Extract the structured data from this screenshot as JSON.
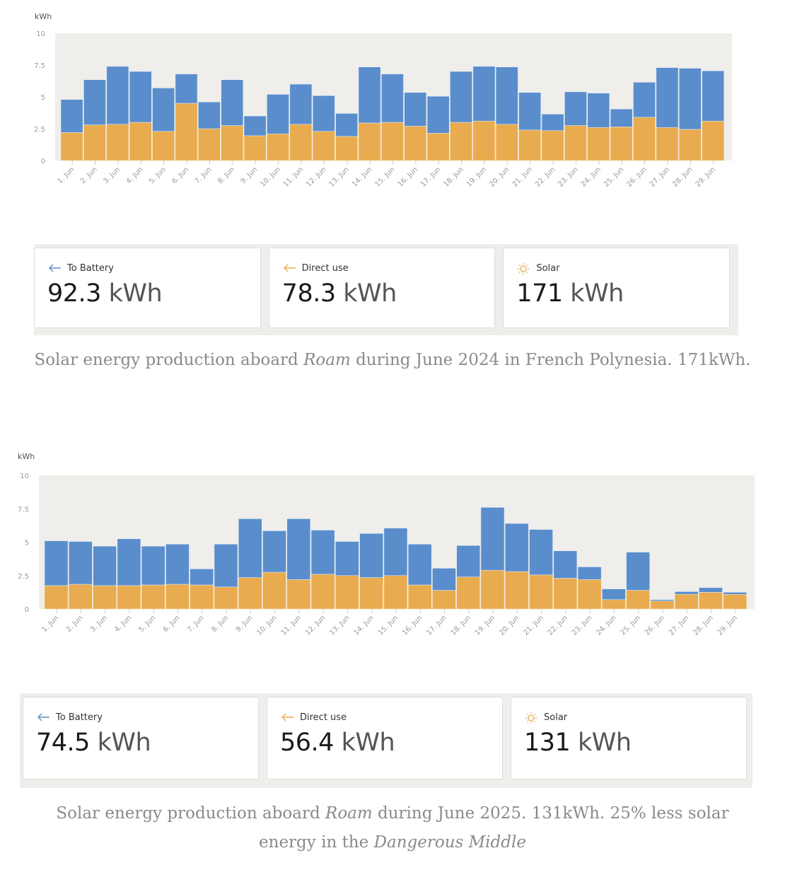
{
  "colors": {
    "to_battery": "#5a8dcc",
    "direct_use": "#e9ab4f",
    "plot_background": "#efeeeb",
    "axis_text": "#999999"
  },
  "chart_data": [
    {
      "type": "bar",
      "stacked": true,
      "title": "",
      "ylabel": "kWh",
      "xlabel": "",
      "ylim": [
        0,
        10
      ],
      "yticks": [
        "0",
        "2.5",
        "5",
        "7.5",
        "10"
      ],
      "categories": [
        "1. Jun",
        "2. Jun",
        "3. Jun",
        "4. Jun",
        "5. Jun",
        "6. Jun",
        "7. Jun",
        "8. Jun",
        "9. Jun",
        "10. Jun",
        "11. Jun",
        "12. Jun",
        "13. Jun",
        "14. Jun",
        "15. Jun",
        "16. Jun",
        "17. Jun",
        "18. Jun",
        "19. Jun",
        "20. Jun",
        "21. Jun",
        "22. Jun",
        "23. Jun",
        "24. Jun",
        "25. Jun",
        "26. Jun",
        "27. Jun",
        "28. Jun",
        "29. Jun"
      ],
      "series": [
        {
          "name": "Direct use",
          "values": [
            2.2,
            2.8,
            2.85,
            3.0,
            2.3,
            4.5,
            2.5,
            2.75,
            1.95,
            2.1,
            2.85,
            2.3,
            1.9,
            2.95,
            3.0,
            2.7,
            2.15,
            3.0,
            3.1,
            2.85,
            2.4,
            2.35,
            2.75,
            2.6,
            2.65,
            3.4,
            2.6,
            2.45,
            3.1
          ]
        },
        {
          "name": "To Battery",
          "values": [
            2.6,
            3.55,
            4.55,
            4.0,
            3.4,
            2.3,
            2.1,
            3.6,
            1.55,
            3.1,
            3.15,
            2.8,
            1.8,
            4.4,
            3.8,
            2.65,
            2.9,
            4.0,
            4.3,
            4.5,
            2.95,
            1.3,
            2.65,
            2.7,
            1.4,
            2.75,
            4.7,
            4.8,
            3.95
          ]
        }
      ],
      "totals": {
        "to_battery": {
          "label": "To Battery",
          "value": "92.3",
          "unit": "kWh"
        },
        "direct_use": {
          "label": "Direct use",
          "value": "78.3",
          "unit": "kWh"
        },
        "solar": {
          "label": "Solar",
          "value": "171",
          "unit": "kWh"
        }
      }
    },
    {
      "type": "bar",
      "stacked": true,
      "title": "",
      "ylabel": "kWh",
      "xlabel": "",
      "ylim": [
        0,
        10
      ],
      "yticks": [
        "0",
        "2.5",
        "5",
        "7.5",
        "10"
      ],
      "categories": [
        "1. Jun",
        "2. Jun",
        "3. Jun",
        "4. Jun",
        "5. Jun",
        "6. Jun",
        "7. Jun",
        "8. Jun",
        "9. Jun",
        "10. Jun",
        "11. Jun",
        "12. Jun",
        "13. Jun",
        "14. Jun",
        "15. Jun",
        "16. Jun",
        "17. Jun",
        "18. Jun",
        "19. Jun",
        "20. Jun",
        "21. Jun",
        "22. Jun",
        "23. Jun",
        "24. Jun",
        "25. Jun",
        "26. Jun",
        "27. Jun",
        "28. Jun",
        "29. Jun"
      ],
      "series": [
        {
          "name": "Direct use",
          "values": [
            1.75,
            1.85,
            1.75,
            1.75,
            1.8,
            1.85,
            1.8,
            1.65,
            2.35,
            2.75,
            2.2,
            2.6,
            2.5,
            2.35,
            2.5,
            1.8,
            1.4,
            2.4,
            2.9,
            2.8,
            2.55,
            2.3,
            2.2,
            0.7,
            1.4,
            0.6,
            1.1,
            1.25,
            1.1
          ]
        },
        {
          "name": "To Battery",
          "values": [
            3.35,
            3.2,
            2.95,
            3.5,
            2.9,
            3.0,
            1.2,
            3.2,
            4.4,
            3.1,
            4.55,
            3.3,
            2.55,
            3.3,
            3.55,
            3.05,
            1.65,
            2.35,
            4.7,
            3.6,
            3.4,
            2.05,
            0.95,
            0.8,
            2.85,
            0.1,
            0.2,
            0.35,
            0.15
          ]
        }
      ],
      "totals": {
        "to_battery": {
          "label": "To Battery",
          "value": "74.5",
          "unit": "kWh"
        },
        "direct_use": {
          "label": "Direct use",
          "value": "56.4",
          "unit": "kWh"
        },
        "solar": {
          "label": "Solar",
          "value": "131",
          "unit": "kWh"
        }
      }
    }
  ],
  "captions": [
    {
      "before": "Solar energy production aboard ",
      "em": "Roam",
      "after": " during June 2024 in French Polynesia. 171kWh."
    },
    {
      "before": "Solar energy production aboard ",
      "em": "Roam",
      "after": " during June 2025. 131kWh. 25% less solar energy in the ",
      "em2": "Dangerous Middle"
    }
  ]
}
